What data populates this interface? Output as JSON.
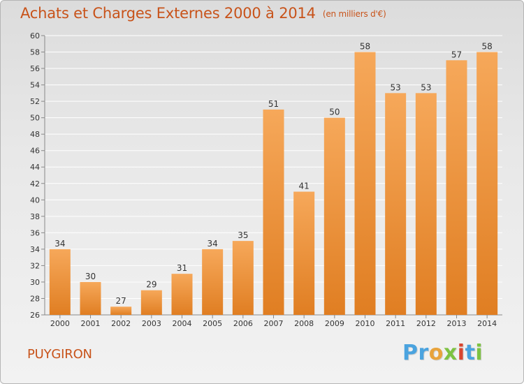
{
  "title": "Achats et Charges Externes 2000 à 2014",
  "subtitle": "(en milliers d'€)",
  "commune": "PUYGIRON",
  "logo": {
    "letters": [
      {
        "ch": "P",
        "color": "#4aa3df"
      },
      {
        "ch": "r",
        "color": "#4aa3df"
      },
      {
        "ch": "o",
        "color": "#e8a33c"
      },
      {
        "ch": "x",
        "color": "#7dc242"
      },
      {
        "ch": "i",
        "color": "#d8452f"
      },
      {
        "ch": "t",
        "color": "#4aa3df"
      },
      {
        "ch": "i",
        "color": "#7dc242"
      }
    ]
  },
  "colors": {
    "title": "#c8531a",
    "bar_light": "#f6a85a",
    "bar_dark": "#e07e22",
    "grid": "#ffffff",
    "axis_text": "#333333"
  },
  "chart_data": {
    "type": "bar",
    "categories": [
      "2000",
      "2001",
      "2002",
      "2003",
      "2004",
      "2005",
      "2006",
      "2007",
      "2008",
      "2009",
      "2010",
      "2011",
      "2012",
      "2013",
      "2014"
    ],
    "values": [
      34,
      30,
      27,
      29,
      31,
      34,
      35,
      51,
      41,
      50,
      58,
      53,
      53,
      57,
      58
    ],
    "value_labels": [
      "34",
      "30",
      "27",
      "29",
      "31",
      "34",
      "35",
      "51",
      "41",
      "50",
      "58",
      "53",
      "53",
      "57",
      "58"
    ],
    "ylim": [
      26,
      60
    ],
    "yticks": [
      "26",
      "28",
      "30",
      "32",
      "34",
      "36",
      "38",
      "40",
      "42",
      "44",
      "46",
      "48",
      "50",
      "52",
      "54",
      "56",
      "58",
      "60"
    ],
    "grid": true
  }
}
